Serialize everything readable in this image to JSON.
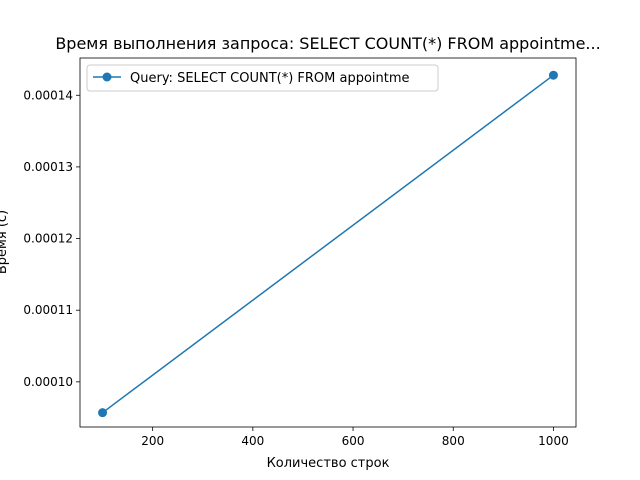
{
  "chart_data": {
    "type": "line",
    "title": "Время выполнения запроса: SELECT COUNT(*) FROM appointme...",
    "xlabel": "Количество строк",
    "ylabel": "Время (с)",
    "xlim": [
      55,
      1045
    ],
    "ylim": [
      9.37e-05,
      0.0001452
    ],
    "xticks": [
      200,
      400,
      600,
      800,
      1000
    ],
    "xtick_labels": [
      "200",
      "400",
      "600",
      "800",
      "1000"
    ],
    "yticks": [
      0.0001,
      0.00011,
      0.00012,
      0.00013,
      0.00014
    ],
    "ytick_labels": [
      "0.00010",
      "0.00011",
      "0.00012",
      "0.00013",
      "0.00014"
    ],
    "grid": false,
    "legend": "top-left",
    "series": [
      {
        "name": "Query: SELECT COUNT(*) FROM appointme",
        "color": "#1f77b4",
        "marker": "circle",
        "x": [
          100,
          1000
        ],
        "y": [
          9.57e-05,
          0.0001428
        ]
      }
    ]
  }
}
